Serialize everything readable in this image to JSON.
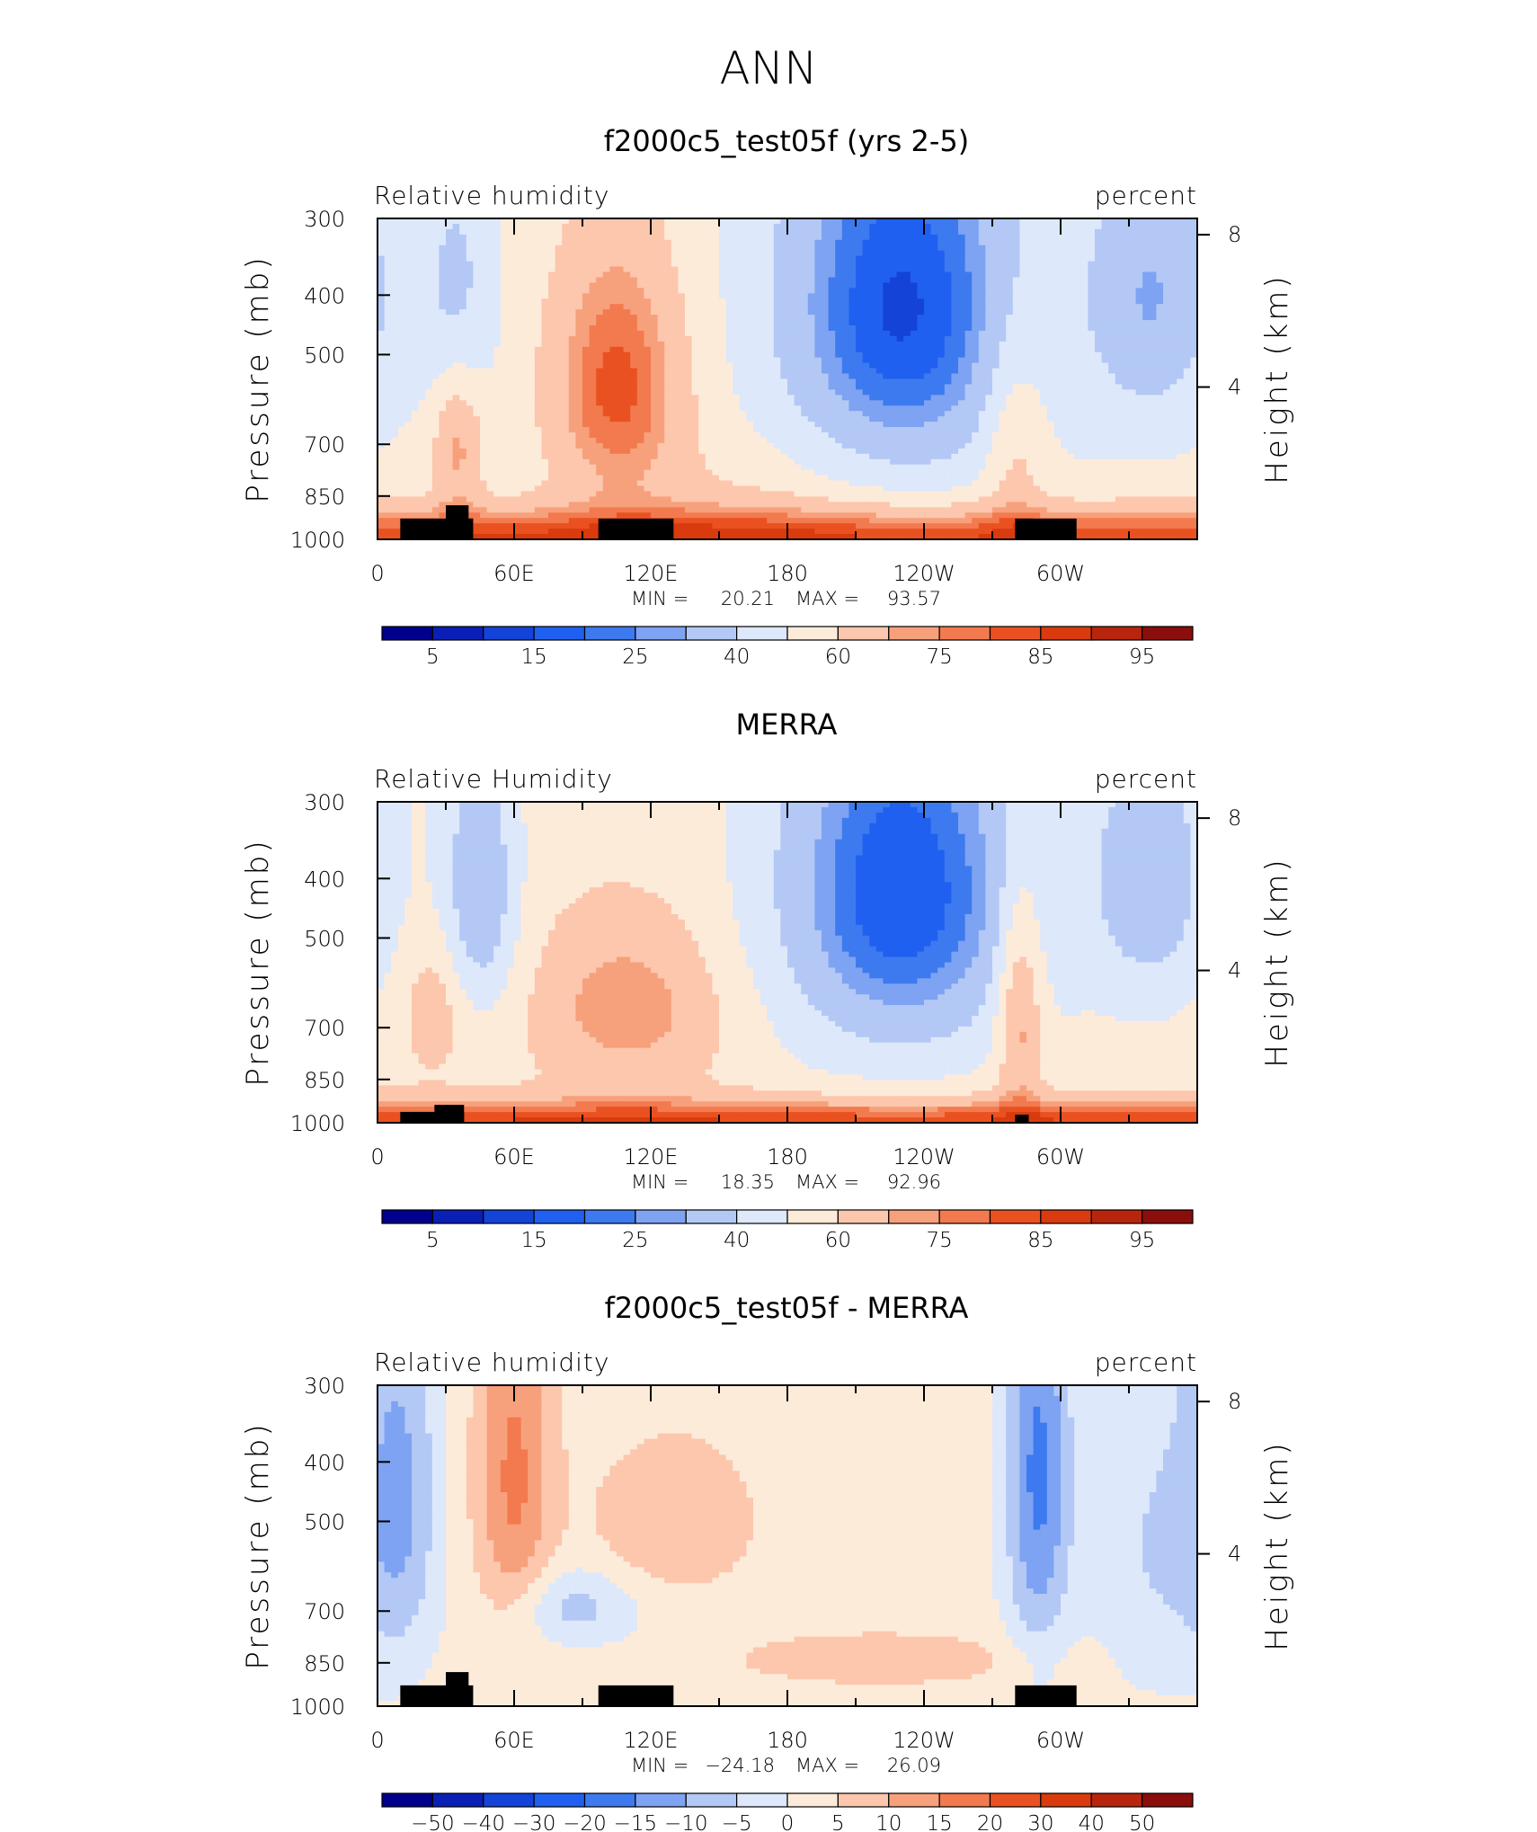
{
  "figure": {
    "title": "ANN"
  },
  "chart_data": [
    {
      "type": "heatmap",
      "title": "f2000c5_test05f (yrs 2-5)",
      "left_label": "Relative humidity",
      "right_label": "percent",
      "ylabel": "Pressure (mb)",
      "ylabel_right": "Height (km)",
      "y_ticks": [
        "300",
        "400",
        "500",
        "700",
        "850",
        "1000"
      ],
      "y_right_ticks": [
        "8",
        "4"
      ],
      "x_ticks": [
        "0",
        "60E",
        "120E",
        "180",
        "120W",
        "60W"
      ],
      "stats": {
        "min_label": "MIN =",
        "min": "20.21",
        "max_label": "MAX =",
        "max": "93.57"
      },
      "colorbar_labels": [
        "5",
        "15",
        "25",
        "40",
        "60",
        "75",
        "85",
        "95"
      ],
      "colors": [
        "#00008c",
        "#0a1fb5",
        "#1443d8",
        "#2060f0",
        "#3d7aef",
        "#7ea3f2",
        "#b3c8f5",
        "#dde8fb",
        "#fdebda",
        "#fcc7ad",
        "#f7a07c",
        "#f27a4e",
        "#ea5121",
        "#d93b0e",
        "#b8250d",
        "#8a0e0b"
      ],
      "blobs": [
        {
          "lon": 105,
          "p": 560,
          "v": 30,
          "rl": 22,
          "rp": 200
        },
        {
          "lon": 35,
          "p": 700,
          "v": 20,
          "rl": 8,
          "rp": 140
        },
        {
          "lon": 230,
          "p": 420,
          "v": -38,
          "rl": 38,
          "rp": 230
        },
        {
          "lon": 340,
          "p": 400,
          "v": -22,
          "rl": 20,
          "rp": 160
        },
        {
          "lon": 35,
          "p": 400,
          "v": -15,
          "rl": 12,
          "rp": 140
        },
        {
          "lon": 280,
          "p": 700,
          "v": 14,
          "rl": 10,
          "rp": 200
        },
        {
          "lon": 160,
          "p": 850,
          "v": 6,
          "rl": 40,
          "rp": 150
        }
      ],
      "base": 52,
      "bl": 33,
      "bl_width": 170,
      "topography": [
        {
          "lon0": 10,
          "lon1": 42,
          "p": 925
        },
        {
          "lon0": 30,
          "lon1": 40,
          "p": 880
        },
        {
          "lon0": 97,
          "lon1": 130,
          "p": 925
        },
        {
          "lon0": 280,
          "lon1": 307,
          "p": 925
        }
      ]
    },
    {
      "type": "heatmap",
      "title": "MERRA",
      "left_label": "Relative Humidity",
      "right_label": "percent",
      "ylabel": "Pressure (mb)",
      "ylabel_right": "Height (km)",
      "y_ticks": [
        "300",
        "400",
        "500",
        "700",
        "850",
        "1000"
      ],
      "y_right_ticks": [
        "8",
        "4"
      ],
      "x_ticks": [
        "0",
        "60E",
        "120E",
        "180",
        "120W",
        "60W"
      ],
      "stats": {
        "min_label": "MIN =",
        "min": "18.35",
        "max_label": "MAX =",
        "max": "92.96"
      },
      "colorbar_labels": [
        "5",
        "15",
        "25",
        "40",
        "60",
        "75",
        "85",
        "95"
      ],
      "colors": [
        "#00008c",
        "#0a1fb5",
        "#1443d8",
        "#2060f0",
        "#3d7aef",
        "#7ea3f2",
        "#b3c8f5",
        "#dde8fb",
        "#fdebda",
        "#fcc7ad",
        "#f7a07c",
        "#f27a4e",
        "#ea5121",
        "#d93b0e",
        "#b8250d",
        "#8a0e0b"
      ],
      "blobs": [
        {
          "lon": 110,
          "p": 650,
          "v": 20,
          "rl": 30,
          "rp": 150
        },
        {
          "lon": 230,
          "p": 420,
          "v": -40,
          "rl": 40,
          "rp": 230
        },
        {
          "lon": 340,
          "p": 400,
          "v": -22,
          "rl": 20,
          "rp": 160
        },
        {
          "lon": 45,
          "p": 420,
          "v": -25,
          "rl": 12,
          "rp": 160
        },
        {
          "lon": 282,
          "p": 650,
          "v": 24,
          "rl": 7,
          "rp": 200
        },
        {
          "lon": 25,
          "p": 650,
          "v": 12,
          "rl": 10,
          "rp": 120
        }
      ],
      "base": 55,
      "bl": 30,
      "bl_width": 130,
      "topography": [
        {
          "lon0": 10,
          "lon1": 38,
          "p": 960
        },
        {
          "lon0": 25,
          "lon1": 38,
          "p": 935
        },
        {
          "lon0": 280,
          "lon1": 286,
          "p": 970
        }
      ]
    },
    {
      "type": "heatmap",
      "title": "f2000c5_test05f - MERRA",
      "left_label": "Relative humidity",
      "right_label": "percent",
      "ylabel": "Pressure (mb)",
      "ylabel_right": "Height (km)",
      "y_ticks": [
        "300",
        "400",
        "500",
        "700",
        "850",
        "1000"
      ],
      "y_right_ticks": [
        "8",
        "4"
      ],
      "x_ticks": [
        "0",
        "60E",
        "120E",
        "180",
        "120W",
        "60W"
      ],
      "stats": {
        "min_label": "MIN =",
        "min": "−24.18",
        "max_label": "MAX =",
        "max": "26.09"
      },
      "colorbar_labels": [
        "−50",
        "−40",
        "−30",
        "−20",
        "−15",
        "−10",
        "−5",
        "0",
        "5",
        "10",
        "15",
        "20",
        "30",
        "40",
        "50"
      ],
      "colors": [
        "#00008c",
        "#0a1fb5",
        "#1443d8",
        "#2060f0",
        "#3d7aef",
        "#7ea3f2",
        "#b3c8f5",
        "#dde8fb",
        "#fdebda",
        "#fcc7ad",
        "#f7a07c",
        "#f27a4e",
        "#ea5121",
        "#d93b0e",
        "#b8250d",
        "#8a0e0b"
      ],
      "blobs": [
        {
          "lon": 10,
          "p": 450,
          "v": -12,
          "rl": 12,
          "rp": 250
        },
        {
          "lon": 60,
          "p": 420,
          "v": 14,
          "rl": 12,
          "rp": 220
        },
        {
          "lon": 290,
          "p": 420,
          "v": -18,
          "rl": 10,
          "rp": 260
        },
        {
          "lon": 85,
          "p": 690,
          "v": -9,
          "rl": 20,
          "rp": 70
        },
        {
          "lon": 130,
          "p": 500,
          "v": 8,
          "rl": 25,
          "rp": 100
        },
        {
          "lon": 220,
          "p": 840,
          "v": 7,
          "rl": 45,
          "rp": 60
        },
        {
          "lon": 340,
          "p": 550,
          "v": -7,
          "rl": 20,
          "rp": 250
        }
      ],
      "base": 2,
      "bl": 0,
      "bl_width": 100,
      "topography": [
        {
          "lon0": 10,
          "lon1": 42,
          "p": 925
        },
        {
          "lon0": 30,
          "lon1": 40,
          "p": 880
        },
        {
          "lon0": 97,
          "lon1": 130,
          "p": 925
        },
        {
          "lon0": 280,
          "lon1": 307,
          "p": 925
        }
      ]
    }
  ]
}
